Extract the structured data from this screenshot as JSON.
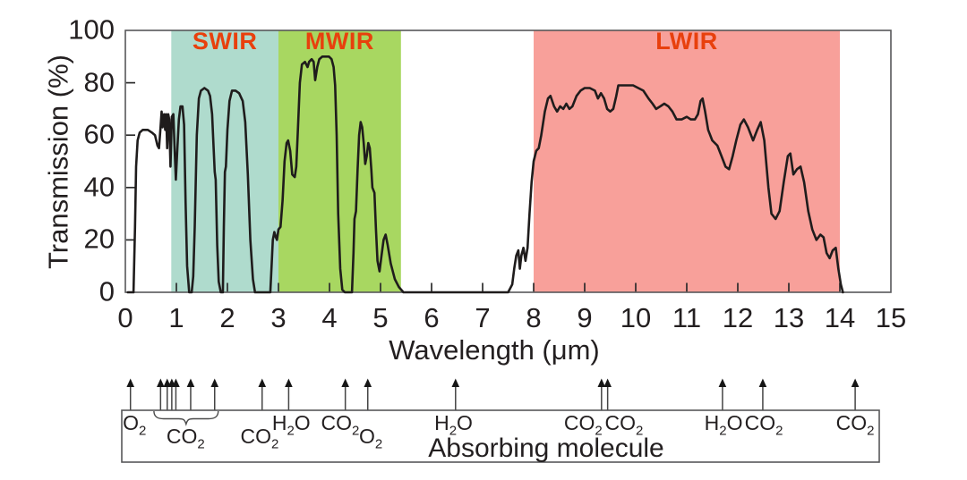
{
  "chart_data": {
    "type": "line",
    "title": "",
    "xlabel": "Wavelength (μm)",
    "ylabel": "Transmission (%)",
    "xlim": [
      0,
      15
    ],
    "ylim": [
      0,
      100
    ],
    "grid": false,
    "x_ticks": [
      0,
      1,
      2,
      3,
      4,
      5,
      6,
      7,
      8,
      9,
      10,
      11,
      12,
      13,
      14,
      15
    ],
    "y_ticks": [
      0,
      20,
      40,
      60,
      80,
      100
    ],
    "frame_color": "#58585a",
    "tick_color": "#2b2b2b",
    "bands": [
      {
        "label": "SWIR",
        "from_um": 0.9,
        "to_um": 3.0,
        "fill": "#afdbcd",
        "label_color": "#e8400d"
      },
      {
        "label": "MWIR",
        "from_um": 3.0,
        "to_um": 5.4,
        "fill": "#a8d761",
        "label_color": "#e8400d"
      },
      {
        "label": "LWIR",
        "from_um": 8.0,
        "to_um": 14.0,
        "fill": "#f8a09a",
        "label_color": "#e8400d"
      }
    ],
    "series": [
      {
        "name": "Atmospheric transmission",
        "color": "#1f1c1c",
        "points": [
          [
            0.05,
            0
          ],
          [
            0.16,
            0
          ],
          [
            0.19,
            25
          ],
          [
            0.21,
            48
          ],
          [
            0.24,
            58
          ],
          [
            0.28,
            61
          ],
          [
            0.34,
            62
          ],
          [
            0.44,
            62
          ],
          [
            0.52,
            61
          ],
          [
            0.58,
            60
          ],
          [
            0.63,
            56
          ],
          [
            0.66,
            55
          ],
          [
            0.69,
            63
          ],
          [
            0.71,
            69
          ],
          [
            0.73,
            63
          ],
          [
            0.76,
            68
          ],
          [
            0.78,
            62
          ],
          [
            0.8,
            68
          ],
          [
            0.82,
            55
          ],
          [
            0.84,
            68
          ],
          [
            0.86,
            66
          ],
          [
            0.885,
            48
          ],
          [
            0.91,
            67
          ],
          [
            0.94,
            68
          ],
          [
            0.965,
            55
          ],
          [
            0.99,
            43
          ],
          [
            1.02,
            55
          ],
          [
            1.05,
            66
          ],
          [
            1.08,
            71
          ],
          [
            1.12,
            71
          ],
          [
            1.15,
            64
          ],
          [
            1.18,
            34
          ],
          [
            1.21,
            10
          ],
          [
            1.25,
            0
          ],
          [
            1.3,
            0
          ],
          [
            1.33,
            6
          ],
          [
            1.36,
            25
          ],
          [
            1.4,
            60
          ],
          [
            1.44,
            74
          ],
          [
            1.48,
            77
          ],
          [
            1.55,
            78
          ],
          [
            1.62,
            77
          ],
          [
            1.66,
            75
          ],
          [
            1.7,
            68
          ],
          [
            1.73,
            55
          ],
          [
            1.75,
            46
          ],
          [
            1.77,
            43
          ],
          [
            1.8,
            18
          ],
          [
            1.83,
            4
          ],
          [
            1.87,
            0
          ],
          [
            1.91,
            0
          ],
          [
            1.93,
            25
          ],
          [
            1.95,
            46
          ],
          [
            1.97,
            48
          ],
          [
            2.0,
            62
          ],
          [
            2.04,
            73
          ],
          [
            2.09,
            77
          ],
          [
            2.16,
            77
          ],
          [
            2.23,
            76
          ],
          [
            2.3,
            73
          ],
          [
            2.35,
            65
          ],
          [
            2.4,
            45
          ],
          [
            2.45,
            20
          ],
          [
            2.5,
            5
          ],
          [
            2.54,
            0
          ],
          [
            2.84,
            0
          ],
          [
            2.87,
            12
          ],
          [
            2.89,
            20
          ],
          [
            2.92,
            23
          ],
          [
            2.95,
            21
          ],
          [
            2.97,
            20
          ],
          [
            3.0,
            24
          ],
          [
            3.04,
            25
          ],
          [
            3.08,
            35
          ],
          [
            3.12,
            50
          ],
          [
            3.16,
            57
          ],
          [
            3.19,
            58
          ],
          [
            3.23,
            54
          ],
          [
            3.27,
            45
          ],
          [
            3.32,
            44
          ],
          [
            3.35,
            48
          ],
          [
            3.38,
            62
          ],
          [
            3.42,
            80
          ],
          [
            3.46,
            87
          ],
          [
            3.52,
            88
          ],
          [
            3.57,
            86
          ],
          [
            3.6,
            88
          ],
          [
            3.65,
            89
          ],
          [
            3.69,
            88
          ],
          [
            3.72,
            81
          ],
          [
            3.76,
            86
          ],
          [
            3.8,
            89
          ],
          [
            3.86,
            90
          ],
          [
            3.93,
            90
          ],
          [
            3.99,
            90
          ],
          [
            4.04,
            89
          ],
          [
            4.08,
            86
          ],
          [
            4.11,
            79
          ],
          [
            4.14,
            60
          ],
          [
            4.17,
            30
          ],
          [
            4.21,
            9
          ],
          [
            4.25,
            1
          ],
          [
            4.3,
            0
          ],
          [
            4.44,
            0
          ],
          [
            4.47,
            15
          ],
          [
            4.49,
            28
          ],
          [
            4.52,
            31
          ],
          [
            4.55,
            47
          ],
          [
            4.58,
            60
          ],
          [
            4.61,
            65
          ],
          [
            4.64,
            63
          ],
          [
            4.67,
            57
          ],
          [
            4.7,
            49
          ],
          [
            4.73,
            52
          ],
          [
            4.76,
            57
          ],
          [
            4.79,
            55
          ],
          [
            4.82,
            47
          ],
          [
            4.84,
            40
          ],
          [
            4.88,
            38
          ],
          [
            4.91,
            24
          ],
          [
            4.94,
            12
          ],
          [
            4.98,
            8
          ],
          [
            5.02,
            14
          ],
          [
            5.06,
            20
          ],
          [
            5.1,
            22
          ],
          [
            5.14,
            18
          ],
          [
            5.2,
            11
          ],
          [
            5.28,
            5
          ],
          [
            5.36,
            2
          ],
          [
            5.45,
            0
          ],
          [
            5.6,
            0
          ],
          [
            7.5,
            0
          ],
          [
            7.58,
            3
          ],
          [
            7.62,
            9
          ],
          [
            7.66,
            14
          ],
          [
            7.7,
            16
          ],
          [
            7.73,
            9
          ],
          [
            7.76,
            14
          ],
          [
            7.8,
            17
          ],
          [
            7.84,
            12
          ],
          [
            7.88,
            17
          ],
          [
            7.92,
            30
          ],
          [
            7.96,
            42
          ],
          [
            8.0,
            50
          ],
          [
            8.05,
            54
          ],
          [
            8.1,
            55
          ],
          [
            8.15,
            60
          ],
          [
            8.22,
            69
          ],
          [
            8.28,
            74
          ],
          [
            8.33,
            75
          ],
          [
            8.4,
            71
          ],
          [
            8.46,
            69
          ],
          [
            8.52,
            71
          ],
          [
            8.58,
            70
          ],
          [
            8.64,
            72
          ],
          [
            8.7,
            70
          ],
          [
            8.76,
            71
          ],
          [
            8.84,
            75
          ],
          [
            8.92,
            77
          ],
          [
            9.0,
            78
          ],
          [
            9.1,
            78
          ],
          [
            9.2,
            77
          ],
          [
            9.26,
            74
          ],
          [
            9.32,
            76
          ],
          [
            9.38,
            74
          ],
          [
            9.44,
            70
          ],
          [
            9.5,
            69
          ],
          [
            9.56,
            70
          ],
          [
            9.62,
            75
          ],
          [
            9.66,
            79
          ],
          [
            9.75,
            79
          ],
          [
            9.85,
            79
          ],
          [
            9.95,
            79
          ],
          [
            10.05,
            78
          ],
          [
            10.15,
            77
          ],
          [
            10.25,
            74
          ],
          [
            10.33,
            72
          ],
          [
            10.4,
            70
          ],
          [
            10.48,
            71
          ],
          [
            10.56,
            72
          ],
          [
            10.64,
            71
          ],
          [
            10.72,
            69
          ],
          [
            10.8,
            66
          ],
          [
            10.9,
            66
          ],
          [
            11.0,
            67
          ],
          [
            11.08,
            66
          ],
          [
            11.16,
            66
          ],
          [
            11.22,
            68
          ],
          [
            11.27,
            73
          ],
          [
            11.31,
            74
          ],
          [
            11.36,
            69
          ],
          [
            11.42,
            62
          ],
          [
            11.5,
            58
          ],
          [
            11.6,
            56
          ],
          [
            11.68,
            52
          ],
          [
            11.76,
            48
          ],
          [
            11.83,
            47
          ],
          [
            11.9,
            52
          ],
          [
            11.97,
            58
          ],
          [
            12.05,
            64
          ],
          [
            12.12,
            66
          ],
          [
            12.2,
            63
          ],
          [
            12.3,
            58
          ],
          [
            12.38,
            62
          ],
          [
            12.45,
            65
          ],
          [
            12.52,
            58
          ],
          [
            12.6,
            40
          ],
          [
            12.66,
            30
          ],
          [
            12.74,
            28
          ],
          [
            12.82,
            31
          ],
          [
            12.9,
            42
          ],
          [
            12.98,
            52
          ],
          [
            13.03,
            53
          ],
          [
            13.09,
            45
          ],
          [
            13.16,
            47
          ],
          [
            13.23,
            48
          ],
          [
            13.3,
            42
          ],
          [
            13.38,
            31
          ],
          [
            13.46,
            24
          ],
          [
            13.54,
            20
          ],
          [
            13.62,
            22
          ],
          [
            13.68,
            21
          ],
          [
            13.74,
            15
          ],
          [
            13.8,
            13
          ],
          [
            13.86,
            16
          ],
          [
            13.92,
            17
          ],
          [
            13.97,
            9
          ],
          [
            14.02,
            3
          ],
          [
            14.06,
            0
          ]
        ]
      }
    ],
    "absorbing_molecules": {
      "panel_title": "Absorbing molecule",
      "items": [
        {
          "formula": "O2",
          "arrows_um": [
            0.1
          ],
          "label_um": 0.18,
          "row": "upper"
        },
        {
          "formula": "CO2",
          "arrows_um": [
            0.69,
            0.82,
            0.91,
            0.99,
            1.28,
            1.75
          ],
          "label_um": 1.18,
          "row": "lower",
          "brace_um": [
            0.56,
            1.82
          ]
        },
        {
          "formula": "CO2",
          "arrows_um": [
            2.68
          ],
          "label_um": 2.63,
          "row": "lower"
        },
        {
          "formula": "H2O",
          "arrows_um": [
            3.2
          ],
          "label_um": 3.25,
          "row": "upper"
        },
        {
          "formula": "CO2",
          "arrows_um": [
            4.31
          ],
          "label_um": 4.21,
          "row": "upper"
        },
        {
          "formula": "O2",
          "arrows_um": [
            4.75
          ],
          "label_um": 4.81,
          "row": "lower"
        },
        {
          "formula": "H2O",
          "arrows_um": [
            6.47
          ],
          "label_um": 6.43,
          "row": "upper"
        },
        {
          "formula": "CO2",
          "arrows_um": [
            9.33
          ],
          "label_um": 8.97,
          "row": "upper"
        },
        {
          "formula": "CO2",
          "arrows_um": [
            9.45
          ],
          "label_um": 9.77,
          "row": "upper"
        },
        {
          "formula": "H2O",
          "arrows_um": [
            11.7
          ],
          "label_um": 11.72,
          "row": "upper"
        },
        {
          "formula": "CO2",
          "arrows_um": [
            12.49
          ],
          "label_um": 12.51,
          "row": "upper"
        },
        {
          "formula": "CO2",
          "arrows_um": [
            14.3
          ],
          "label_um": 14.3,
          "row": "upper"
        }
      ]
    }
  }
}
